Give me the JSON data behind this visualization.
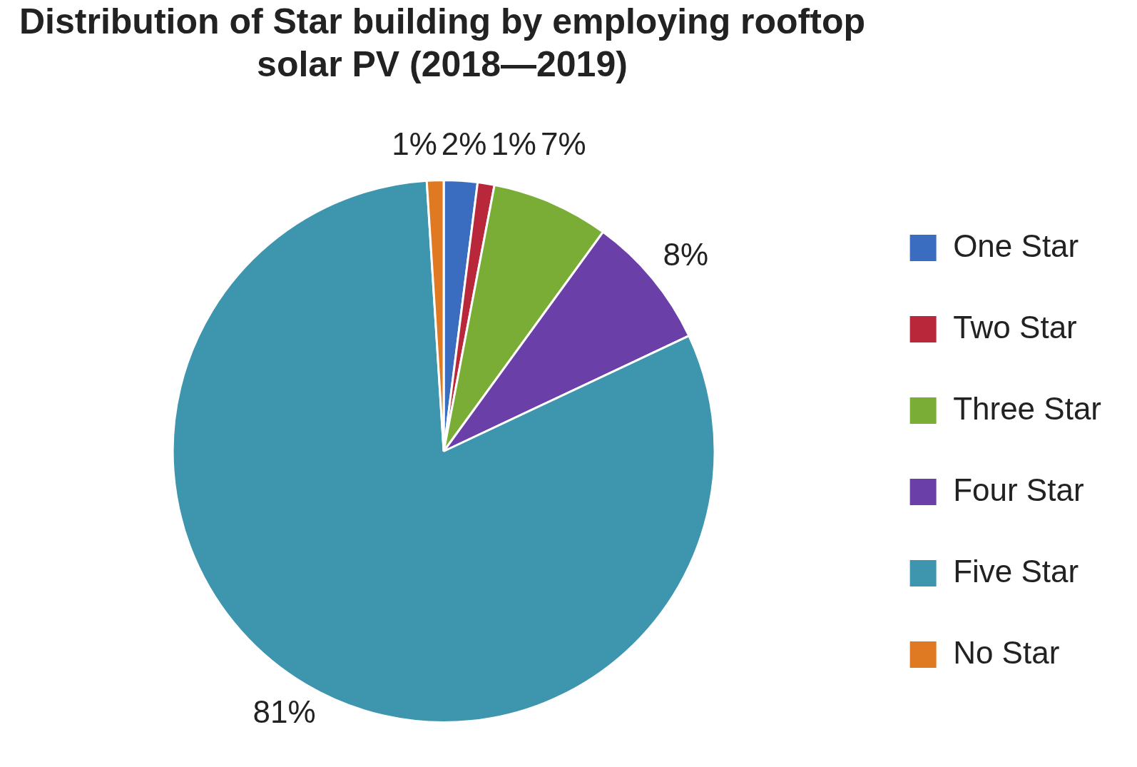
{
  "chart_data": {
    "type": "pie",
    "title": "Distribution of Star building by employing rooftop solar PV (2018—2019)",
    "categories": [
      "One Star",
      "Two Star",
      "Three Star",
      "Four Star",
      "Five Star",
      "No Star"
    ],
    "values": [
      2,
      1,
      7,
      8,
      81,
      1
    ],
    "colors": [
      "#3a6cbf",
      "#b9283a",
      "#7aad36",
      "#6a3fa8",
      "#3e95ae",
      "#e07a22"
    ],
    "value_labels": [
      "2%",
      "1%",
      "7%",
      "8%",
      "81%",
      "1%"
    ],
    "legend": "right"
  }
}
